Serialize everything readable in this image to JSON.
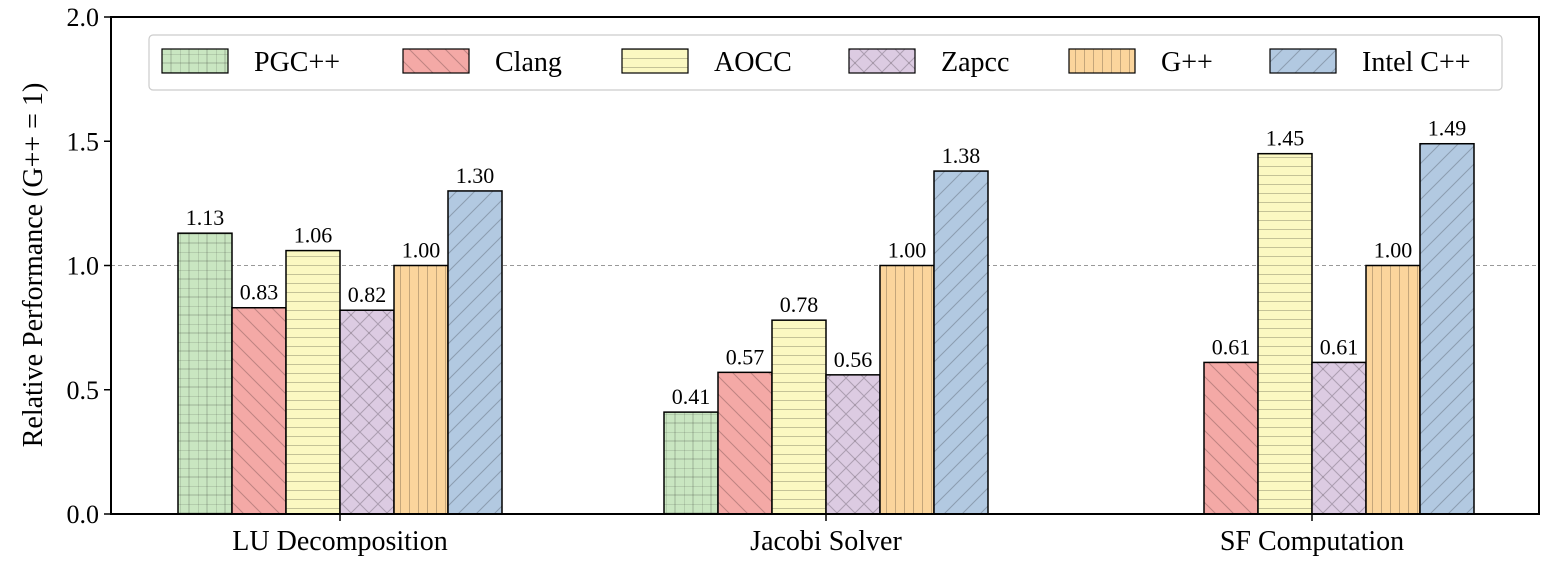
{
  "chart_data": {
    "type": "bar",
    "ylabel": "Relative Performance (G++ = 1)",
    "xlabel": "",
    "ylim": [
      0,
      2.0
    ],
    "yticks": [
      "0.0",
      "0.5",
      "1.0",
      "1.5",
      "2.0"
    ],
    "reference_line": 1.0,
    "grid": false,
    "legend_position": "top",
    "categories": [
      "LU Decomposition",
      "Jacobi Solver",
      "SF Computation"
    ],
    "series": [
      {
        "name": "PGC++",
        "color": "#c9e6c1",
        "hatch": "grid",
        "values": [
          1.13,
          0.41,
          null
        ],
        "labels": [
          "1.13",
          "0.41",
          ""
        ]
      },
      {
        "name": "Clang",
        "color": "#f4a9a6",
        "hatch": "backdiag",
        "values": [
          0.83,
          0.57,
          0.61
        ],
        "labels": [
          "0.83",
          "0.57",
          "0.61"
        ]
      },
      {
        "name": "AOCC",
        "color": "#fbf8c2",
        "hatch": "horiz",
        "values": [
          1.06,
          0.78,
          1.45
        ],
        "labels": [
          "1.06",
          "0.78",
          "1.45"
        ]
      },
      {
        "name": "Zapcc",
        "color": "#dccbe2",
        "hatch": "cross",
        "values": [
          0.82,
          0.56,
          0.61
        ],
        "labels": [
          "0.82",
          "0.56",
          "0.61"
        ]
      },
      {
        "name": "G++",
        "color": "#fbd59c",
        "hatch": "vert",
        "values": [
          1.0,
          1.0,
          1.0
        ],
        "labels": [
          "1.00",
          "1.00",
          "1.00"
        ]
      },
      {
        "name": "Intel C++",
        "color": "#b2c9e1",
        "hatch": "diag",
        "values": [
          1.3,
          1.38,
          1.49
        ],
        "labels": [
          "1.30",
          "1.38",
          "1.49"
        ]
      }
    ]
  }
}
